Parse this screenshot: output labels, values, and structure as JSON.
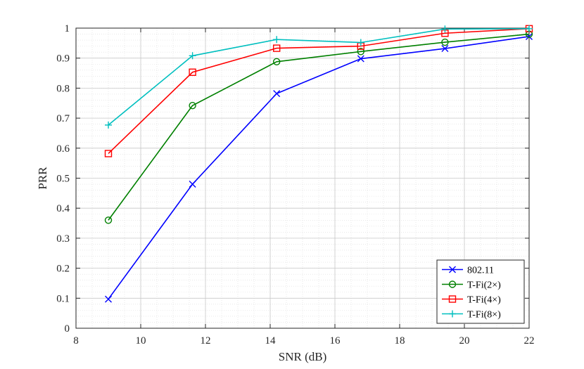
{
  "chart_data": {
    "type": "line",
    "title": "",
    "xlabel": "SNR (dB)",
    "ylabel": "PRR",
    "xlim": [
      8,
      22
    ],
    "ylim": [
      0,
      1
    ],
    "xticks": [
      8,
      10,
      12,
      14,
      16,
      18,
      20,
      22
    ],
    "yticks": [
      0,
      0.1,
      0.2,
      0.3,
      0.4,
      0.5,
      0.6,
      0.7,
      0.8,
      0.9,
      1
    ],
    "grid": true,
    "minor_grid": true,
    "legend_position": "bottom-right",
    "x": [
      9.0,
      11.6,
      14.2,
      16.8,
      19.4,
      22.0
    ],
    "series": [
      {
        "name": "802.11",
        "color": "#0000ff",
        "marker": "x",
        "values": [
          0.097,
          0.48,
          0.782,
          0.898,
          0.932,
          0.972
        ]
      },
      {
        "name": "T-Fi(2×)",
        "color": "#008000",
        "marker": "o",
        "values": [
          0.36,
          0.742,
          0.888,
          0.922,
          0.953,
          0.98
        ]
      },
      {
        "name": "T-Fi(4×)",
        "color": "#ff0000",
        "marker": "s",
        "values": [
          0.582,
          0.853,
          0.933,
          0.94,
          0.983,
          0.998
        ]
      },
      {
        "name": "T-Fi(8×)",
        "color": "#00bfbf",
        "marker": "+",
        "values": [
          0.677,
          0.908,
          0.962,
          0.952,
          0.997,
          0.998
        ]
      }
    ]
  }
}
